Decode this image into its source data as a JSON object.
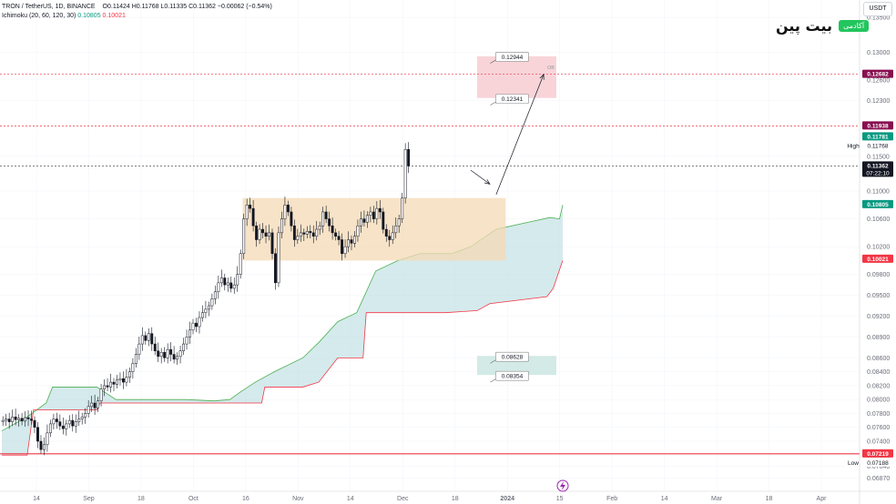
{
  "header": {
    "symbol": "TRON / TetherUS, 1D, BINANCE",
    "ohlc": "O0.11424 H0.11768 L0.11335 C0.11362 −0.00062 (−0.54%)",
    "indicator_name": "Ichimoku (20, 60, 120, 30)",
    "indicator_v1": "0.10805",
    "indicator_v2": "0.10021"
  },
  "unit": "USDT",
  "brand": {
    "name": "بیت پین",
    "tag": "آکادمی"
  },
  "colors": {
    "up": "#089981",
    "down": "#f23645",
    "candle": "#131722",
    "cloud_bull": "#b2d8dc",
    "span_a": "#4caf50",
    "span_b": "#f23645",
    "zone_range": "#f4d9b5",
    "zone_upper": "#f6c5cc",
    "zone_lower": "#c4e3dd"
  },
  "chart_data": {
    "type": "candlestick",
    "y_axis": {
      "range": [
        0.0668,
        0.1375
      ],
      "ticks": [
        "0.13500",
        "0.13000",
        "0.12700",
        "0.12600",
        "0.12300",
        "0.11500",
        "0.11000",
        "0.10600",
        "0.10200",
        "0.09800",
        "0.09500",
        "0.09200",
        "0.08900",
        "0.08600",
        "0.08400",
        "0.08200",
        "0.08000",
        "0.07800",
        "0.07600",
        "0.07400",
        "0.07200",
        "0.07040",
        "0.06870"
      ]
    },
    "x_axis": {
      "labels": [
        "14",
        "Sep",
        "18",
        "Oct",
        "16",
        "Nov",
        "14",
        "Dec",
        "18",
        "2024",
        "15",
        "Feb",
        "14",
        "Mar",
        "18",
        "Apr"
      ]
    },
    "price_labels": [
      {
        "value": 0.12682,
        "text": "0.12682",
        "color": "#880e4f"
      },
      {
        "value": 0.11938,
        "text": "0.11938",
        "color": "#880e4f"
      },
      {
        "value": 0.11781,
        "text": "0.11781",
        "color": "#089981"
      },
      {
        "value": 0.11768,
        "text": "0.11768",
        "color": "",
        "tag": "High"
      },
      {
        "value": 0.11362,
        "text": "0.11362",
        "color": "#131722",
        "sub": "07:22:10"
      },
      {
        "value": 0.10805,
        "text": "0.10805",
        "color": "#089981"
      },
      {
        "value": 0.10021,
        "text": "0.10021",
        "color": "#f23645"
      },
      {
        "value": 0.07219,
        "text": "0.07219",
        "color": "#f23645"
      },
      {
        "value": 0.07188,
        "text": "0.07188",
        "color": "",
        "tag": "Low"
      }
    ],
    "horizontal_lines": [
      {
        "value": 0.12682,
        "style": "dotted",
        "color": "#f23645"
      },
      {
        "value": 0.11938,
        "style": "dotted",
        "color": "#f23645"
      },
      {
        "value": 0.11362,
        "style": "dotted",
        "color": "#555555"
      },
      {
        "value": 0.07219,
        "style": "solid",
        "color": "#f23645"
      }
    ],
    "zones": [
      {
        "name": "range-box",
        "x": [
          76,
          159
        ],
        "y": [
          0.1,
          0.109
        ],
        "color": "#f4d9b5"
      },
      {
        "name": "upper-target-zone",
        "x": [
          150,
          175
        ],
        "y": [
          0.1234,
          0.1294
        ],
        "color": "#f6c5cc",
        "label": "OB"
      },
      {
        "name": "lower-target-zone",
        "x": [
          150,
          175
        ],
        "y": [
          0.08354,
          0.08628
        ],
        "color": "#c4e3dd"
      }
    ],
    "callouts": [
      {
        "text": "0.12944",
        "value": 0.12944,
        "x": 153
      },
      {
        "text": "0.12341",
        "value": 0.12341,
        "x": 153
      },
      {
        "text": "0.08628",
        "value": 0.08628,
        "x": 153
      },
      {
        "text": "0.08354",
        "value": 0.08354,
        "x": 153
      }
    ],
    "arrows": [
      {
        "from": [
          148,
          0.113
        ],
        "to": [
          154,
          0.111
        ]
      },
      {
        "from": [
          156,
          0.1095
        ],
        "to": [
          171,
          0.1268
        ]
      }
    ],
    "cloud_span_a": [
      [
        0,
        0.0755
      ],
      [
        8,
        0.0775
      ],
      [
        14,
        0.0795
      ],
      [
        16,
        0.0818
      ],
      [
        30,
        0.0818
      ],
      [
        36,
        0.08
      ],
      [
        45,
        0.08
      ],
      [
        58,
        0.08
      ],
      [
        67,
        0.0798
      ],
      [
        72,
        0.08
      ],
      [
        75,
        0.081
      ],
      [
        80,
        0.0825
      ],
      [
        86,
        0.084
      ],
      [
        95,
        0.086
      ],
      [
        100,
        0.0882
      ],
      [
        106,
        0.0912
      ],
      [
        112,
        0.0925
      ],
      [
        118,
        0.0985
      ],
      [
        125,
        0.1
      ],
      [
        132,
        0.101
      ],
      [
        142,
        0.101
      ],
      [
        148,
        0.102
      ],
      [
        156,
        0.1045
      ],
      [
        166,
        0.1055
      ],
      [
        173,
        0.1062
      ],
      [
        176,
        0.106
      ],
      [
        177,
        0.108
      ]
    ],
    "cloud_span_b": [
      [
        0,
        0.072
      ],
      [
        8,
        0.072
      ],
      [
        10,
        0.0785
      ],
      [
        30,
        0.0785
      ],
      [
        31,
        0.0795
      ],
      [
        58,
        0.0795
      ],
      [
        82,
        0.0795
      ],
      [
        83,
        0.0818
      ],
      [
        95,
        0.0818
      ],
      [
        100,
        0.0825
      ],
      [
        106,
        0.086
      ],
      [
        114,
        0.086
      ],
      [
        115,
        0.0925
      ],
      [
        140,
        0.0925
      ],
      [
        150,
        0.0928
      ],
      [
        154,
        0.0938
      ],
      [
        172,
        0.0948
      ],
      [
        174,
        0.096
      ],
      [
        177,
        0.1
      ]
    ],
    "candles_close": [
      0.077,
      0.0772,
      0.0768,
      0.0775,
      0.0771,
      0.0773,
      0.0769,
      0.0774,
      0.0772,
      0.077,
      0.076,
      0.074,
      0.0728,
      0.0735,
      0.0752,
      0.0765,
      0.0772,
      0.0768,
      0.0762,
      0.0758,
      0.0765,
      0.077,
      0.0762,
      0.0768,
      0.0772,
      0.0775,
      0.078,
      0.079,
      0.0795,
      0.0788,
      0.0798,
      0.0815,
      0.082,
      0.0818,
      0.0825,
      0.0822,
      0.0828,
      0.083,
      0.0825,
      0.0832,
      0.084,
      0.0852,
      0.0865,
      0.088,
      0.0892,
      0.0885,
      0.0895,
      0.088,
      0.087,
      0.0862,
      0.0868,
      0.086,
      0.0872,
      0.0865,
      0.0858,
      0.0862,
      0.087,
      0.088,
      0.089,
      0.09,
      0.091,
      0.0905,
      0.0918,
      0.0925,
      0.093,
      0.0935,
      0.0945,
      0.0955,
      0.0968,
      0.0975,
      0.0965,
      0.0968,
      0.096,
      0.0965,
      0.098,
      0.101,
      0.106,
      0.108,
      0.1075,
      0.105,
      0.103,
      0.1045,
      0.104,
      0.1035,
      0.104,
      0.101,
      0.0968,
      0.104,
      0.106,
      0.108,
      0.107,
      0.105,
      0.103,
      0.1035,
      0.104,
      0.1038,
      0.1042,
      0.104,
      0.1035,
      0.1045,
      0.105,
      0.107,
      0.106,
      0.105,
      0.104,
      0.1035,
      0.103,
      0.101,
      0.102,
      0.103,
      0.1025,
      0.1035,
      0.105,
      0.106,
      0.1055,
      0.1065,
      0.107,
      0.106,
      0.1075,
      0.107,
      0.1045,
      0.1035,
      0.103,
      0.104,
      0.105,
      0.106,
      0.109,
      0.116,
      0.1136
    ]
  }
}
